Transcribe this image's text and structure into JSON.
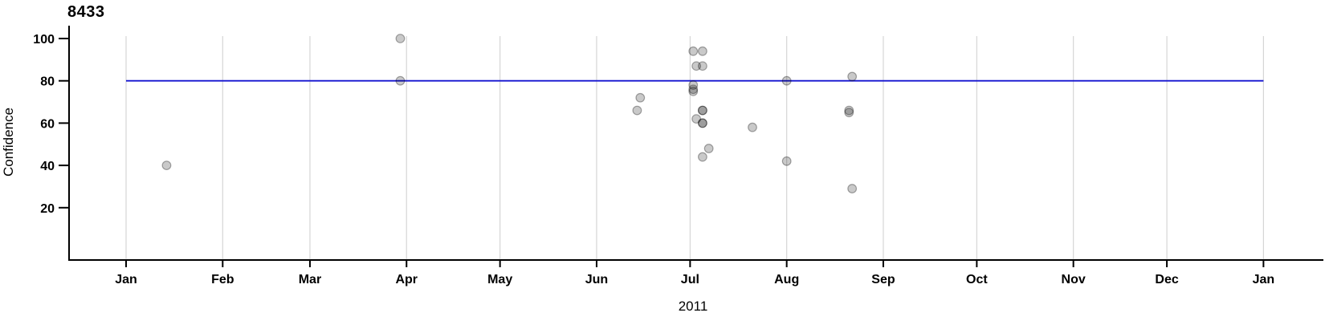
{
  "chart": {
    "title": "8433",
    "y_axis_title": "Confidence",
    "x_axis_title": "2011"
  },
  "chart_data": {
    "type": "scatter",
    "title": "8433",
    "xlabel": "2011",
    "ylabel": "Confidence",
    "x_axis": {
      "type": "date",
      "start": "2011-01-01",
      "end": "2012-01-01",
      "tick_labels": [
        "Jan",
        "Feb",
        "Mar",
        "Apr",
        "May",
        "Jun",
        "Jul",
        "Aug",
        "Sep",
        "Oct",
        "Nov",
        "Dec",
        "Jan"
      ]
    },
    "y_ticks": [
      20,
      40,
      60,
      80,
      100
    ],
    "ylim": [
      0,
      100
    ],
    "grid": "vertical-month-gridlines",
    "legend": "none",
    "hline": {
      "y": 80,
      "color": "#1414d0"
    },
    "colors": {
      "point_fill": "rgba(0,0,0,0.21)",
      "point_stroke": "rgba(0,0,0,0.33)",
      "gridline": "#d6d6d6",
      "axis": "#000000"
    },
    "points": [
      {
        "date": "2011-01-14",
        "value": 40
      },
      {
        "date": "2011-03-30",
        "value": 100
      },
      {
        "date": "2011-03-30",
        "value": 80
      },
      {
        "date": "2011-06-15",
        "value": 72
      },
      {
        "date": "2011-06-14",
        "value": 66
      },
      {
        "date": "2011-07-02",
        "value": 94
      },
      {
        "date": "2011-07-05",
        "value": 94
      },
      {
        "date": "2011-07-03",
        "value": 87
      },
      {
        "date": "2011-07-05",
        "value": 87
      },
      {
        "date": "2011-07-02",
        "value": 78
      },
      {
        "date": "2011-07-02",
        "value": 76
      },
      {
        "date": "2011-07-02",
        "value": 75
      },
      {
        "date": "2011-07-05",
        "value": 66
      },
      {
        "date": "2011-07-05",
        "value": 66
      },
      {
        "date": "2011-07-03",
        "value": 62
      },
      {
        "date": "2011-07-05",
        "value": 60
      },
      {
        "date": "2011-07-05",
        "value": 60
      },
      {
        "date": "2011-07-07",
        "value": 48
      },
      {
        "date": "2011-07-05",
        "value": 44
      },
      {
        "date": "2011-07-21",
        "value": 58
      },
      {
        "date": "2011-08-01",
        "value": 80
      },
      {
        "date": "2011-08-01",
        "value": 42
      },
      {
        "date": "2011-08-22",
        "value": 82
      },
      {
        "date": "2011-08-21",
        "value": 66
      },
      {
        "date": "2011-08-21",
        "value": 65
      },
      {
        "date": "2011-08-22",
        "value": 29
      }
    ]
  }
}
